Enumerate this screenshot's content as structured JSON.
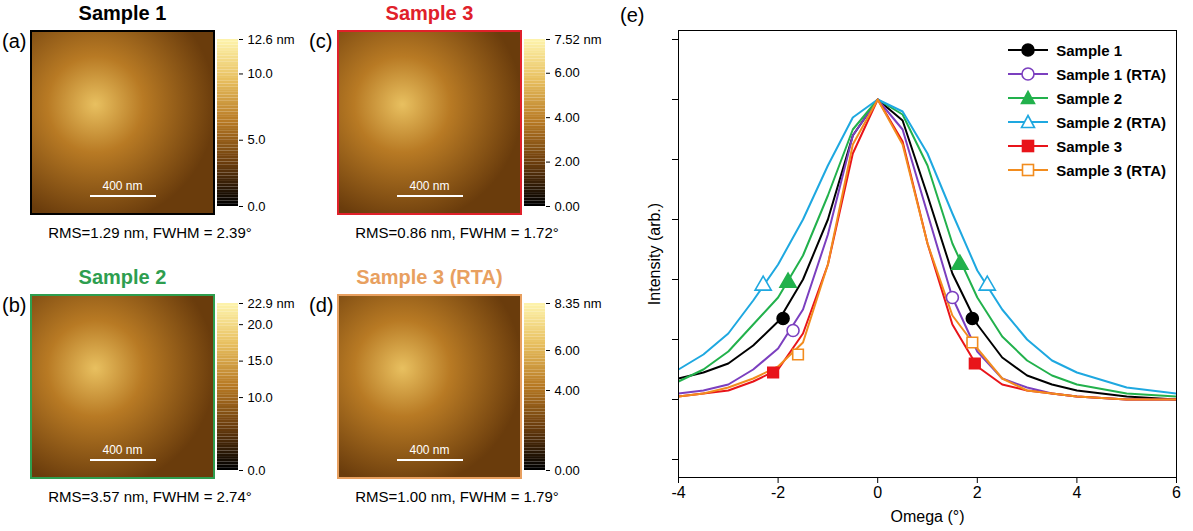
{
  "afm_panels": [
    {
      "letter": "(a)",
      "title": "Sample 1",
      "color": "#000000",
      "colorbar_range": [
        0,
        12.6
      ],
      "colorbar_ticks": [
        {
          "value": 0,
          "label": "0.0"
        },
        {
          "value": 5,
          "label": "5.0"
        },
        {
          "value": 10,
          "label": "10.0"
        },
        {
          "value": 12.6,
          "label": "12.6 nm"
        }
      ],
      "scale_bar": "400 nm",
      "caption": "RMS=1.29 nm, FWHM = 2.39°"
    },
    {
      "letter": "(b)",
      "title": "Sample 2",
      "color": "#2e9e4f",
      "colorbar_range": [
        0,
        22.9
      ],
      "colorbar_ticks": [
        {
          "value": 0,
          "label": "0.0"
        },
        {
          "value": 10,
          "label": "10.0"
        },
        {
          "value": 15,
          "label": "15.0"
        },
        {
          "value": 20,
          "label": "20.0"
        },
        {
          "value": 22.9,
          "label": "22.9 nm"
        }
      ],
      "scale_bar": "400 nm",
      "caption": "RMS=3.57 nm, FWHM = 2.74°"
    },
    {
      "letter": "(c)",
      "title": "Sample 3",
      "color": "#e0202a",
      "colorbar_range": [
        0,
        7.52
      ],
      "colorbar_ticks": [
        {
          "value": 0,
          "label": "0.00"
        },
        {
          "value": 2,
          "label": "2.00"
        },
        {
          "value": 4,
          "label": "4.00"
        },
        {
          "value": 6,
          "label": "6.00"
        },
        {
          "value": 7.52,
          "label": "7.52 nm"
        }
      ],
      "scale_bar": "400 nm",
      "caption": "RMS=0.86 nm, FWHM = 1.72°"
    },
    {
      "letter": "(d)",
      "title": "Sample 3 (RTA)",
      "color": "#e8a060",
      "colorbar_range": [
        0,
        8.35
      ],
      "colorbar_ticks": [
        {
          "value": 0,
          "label": "0.00"
        },
        {
          "value": 4,
          "label": "4.00"
        },
        {
          "value": 6,
          "label": "6.00"
        },
        {
          "value": 8.35,
          "label": "8.35 nm"
        }
      ],
      "scale_bar": "400 nm",
      "caption": "RMS=1.00 nm, FWHM = 1.79°"
    }
  ],
  "chart_data": {
    "type": "line",
    "letter": "(e)",
    "x_label": "Omega (°)",
    "y_label": "Intensity (arb.)",
    "x": [
      -4,
      -3.5,
      -3,
      -2.5,
      -2,
      -1.5,
      -1,
      -0.5,
      0,
      0.5,
      1,
      1.5,
      2,
      2.5,
      3,
      3.5,
      4,
      5,
      6
    ],
    "xlim": [
      -4,
      6
    ],
    "xticks": [
      -4,
      -2,
      0,
      2,
      4,
      6
    ],
    "ylim": [
      -0.26,
      1.23
    ],
    "yticks": [
      -0.2,
      0,
      0.2,
      0.4,
      0.6,
      0.8,
      1.0,
      1.2
    ],
    "tick_labels": "x",
    "grid": false,
    "legend": "upper right",
    "series": [
      {
        "name": "Sample 1",
        "color": "#000000",
        "marker": "circle",
        "values": [
          0.07,
          0.09,
          0.12,
          0.18,
          0.26,
          0.4,
          0.6,
          0.88,
          1.0,
          0.93,
          0.68,
          0.42,
          0.25,
          0.14,
          0.08,
          0.05,
          0.03,
          0.01,
          0.0
        ],
        "marker_points": [
          [
            -1.9,
            0.27
          ],
          [
            1.9,
            0.27
          ]
        ]
      },
      {
        "name": "Sample 1 (RTA)",
        "color": "#7b3fbf",
        "marker": "circle-open",
        "values": [
          0.02,
          0.03,
          0.05,
          0.1,
          0.17,
          0.3,
          0.55,
          0.88,
          1.0,
          0.9,
          0.62,
          0.34,
          0.16,
          0.07,
          0.04,
          0.02,
          0.01,
          0.0,
          0.0
        ],
        "marker_points": [
          [
            -1.7,
            0.23
          ],
          [
            1.5,
            0.34
          ]
        ]
      },
      {
        "name": "Sample 2",
        "color": "#22b14c",
        "marker": "triangle",
        "values": [
          0.06,
          0.1,
          0.16,
          0.25,
          0.34,
          0.48,
          0.68,
          0.9,
          1.0,
          0.95,
          0.78,
          0.52,
          0.34,
          0.21,
          0.13,
          0.08,
          0.05,
          0.02,
          0.01
        ],
        "marker_points": [
          [
            -1.8,
            0.39
          ],
          [
            1.65,
            0.45
          ]
        ]
      },
      {
        "name": "Sample 2 (RTA)",
        "color": "#1ea8e0",
        "marker": "triangle-open",
        "values": [
          0.1,
          0.15,
          0.22,
          0.33,
          0.45,
          0.6,
          0.78,
          0.94,
          1.0,
          0.96,
          0.82,
          0.62,
          0.43,
          0.3,
          0.2,
          0.13,
          0.09,
          0.04,
          0.02
        ],
        "marker_points": [
          [
            -2.3,
            0.38
          ],
          [
            2.2,
            0.38
          ]
        ]
      },
      {
        "name": "Sample 3",
        "color": "#e8141a",
        "marker": "square",
        "values": [
          0.01,
          0.02,
          0.03,
          0.06,
          0.1,
          0.22,
          0.45,
          0.82,
          1.0,
          0.86,
          0.52,
          0.25,
          0.11,
          0.05,
          0.03,
          0.02,
          0.01,
          0.0,
          0.0
        ],
        "marker_points": [
          [
            -2.1,
            0.09
          ],
          [
            1.95,
            0.12
          ]
        ]
      },
      {
        "name": "Sample 3 (RTA)",
        "color": "#f28c1e",
        "marker": "square-open",
        "values": [
          0.01,
          0.02,
          0.04,
          0.07,
          0.11,
          0.19,
          0.45,
          0.85,
          1.0,
          0.85,
          0.52,
          0.28,
          0.17,
          0.07,
          0.03,
          0.02,
          0.01,
          0.0,
          0.0
        ],
        "marker_points": [
          [
            -1.6,
            0.15
          ],
          [
            1.9,
            0.19
          ]
        ]
      }
    ]
  }
}
